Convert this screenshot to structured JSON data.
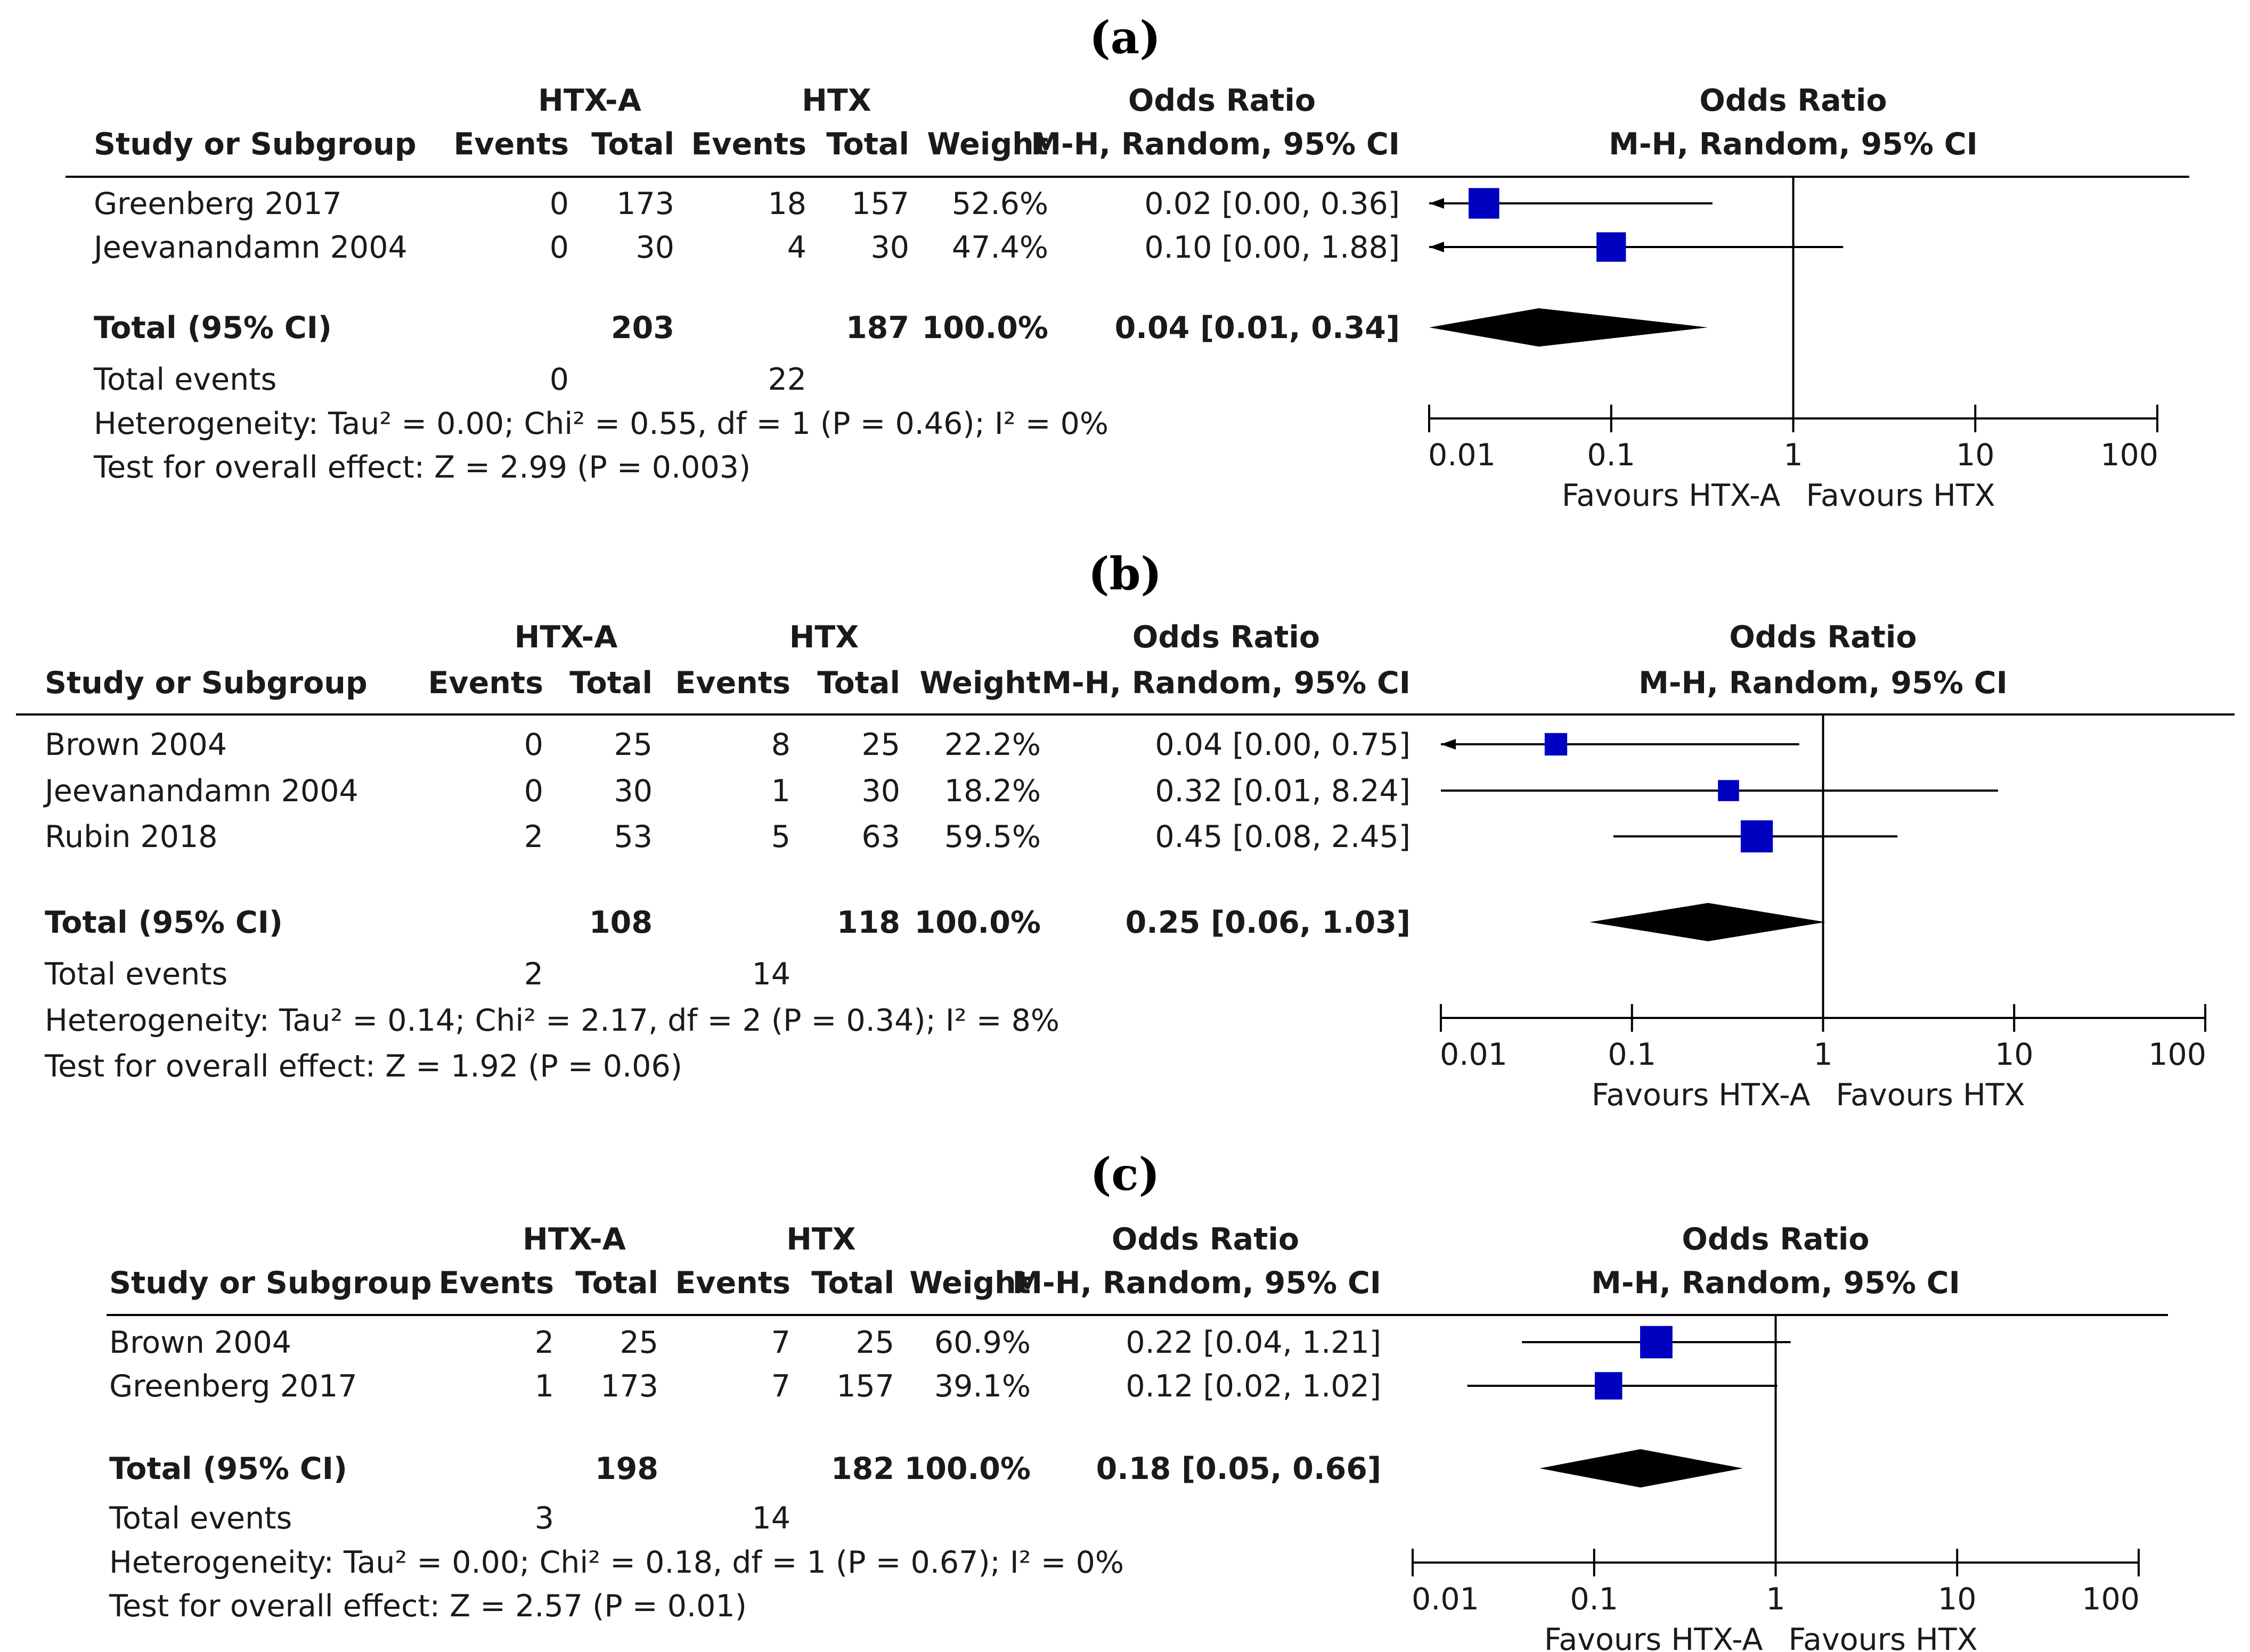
{
  "columns": {
    "study": "Study or Subgroup",
    "group1": "HTX-A",
    "group2": "HTX",
    "events": "Events",
    "total": "Total",
    "weight": "Weight",
    "or_title": "Odds Ratio",
    "or_method": "M-H, Random, 95% CI"
  },
  "axis": {
    "ticks": [
      "0.01",
      "0.1",
      "1",
      "10",
      "100"
    ],
    "favours_left": "Favours HTX-A",
    "favours_right": "Favours HTX"
  },
  "chart_data": [
    {
      "type": "forest",
      "label": "(a)",
      "studies": [
        {
          "name": "Greenberg 2017",
          "e1": "0",
          "n1": "173",
          "e2": "18",
          "n2": "157",
          "weight": "52.6%",
          "ci_text": "0.02 [0.00, 0.36]",
          "or": 0.02,
          "lo": 0.0001,
          "hi": 0.36,
          "w": 52.6,
          "lo_arrow": true
        },
        {
          "name": "Jeevanandamn 2004",
          "e1": "0",
          "n1": "30",
          "e2": "4",
          "n2": "30",
          "weight": "47.4%",
          "ci_text": "0.10 [0.00, 1.88]",
          "or": 0.1,
          "lo": 0.0001,
          "hi": 1.88,
          "w": 47.4,
          "lo_arrow": true
        }
      ],
      "total": {
        "label": "Total (95% CI)",
        "n1": "203",
        "n2": "187",
        "weight": "100.0%",
        "ci_text": "0.04 [0.01, 0.34]",
        "or": 0.04,
        "lo": 0.01,
        "hi": 0.34
      },
      "events": {
        "label": "Total events",
        "e1": "0",
        "e2": "22"
      },
      "heterogeneity": "Heterogeneity: Tau² = 0.00; Chi² = 0.55, df = 1 (P = 0.46); I² = 0%",
      "overall": "Test for overall effect: Z = 2.99 (P = 0.003)",
      "axis_range": [
        0.01,
        100
      ]
    },
    {
      "type": "forest",
      "label": "(b)",
      "studies": [
        {
          "name": "Brown 2004",
          "e1": "0",
          "n1": "25",
          "e2": "8",
          "n2": "25",
          "weight": "22.2%",
          "ci_text": "0.04 [0.00, 0.75]",
          "or": 0.04,
          "lo": 0.0001,
          "hi": 0.75,
          "w": 22.2,
          "lo_arrow": true
        },
        {
          "name": "Jeevanandamn 2004",
          "e1": "0",
          "n1": "30",
          "e2": "1",
          "n2": "30",
          "weight": "18.2%",
          "ci_text": "0.32 [0.01, 8.24]",
          "or": 0.32,
          "lo": 0.01,
          "hi": 8.24,
          "w": 18.2,
          "lo_arrow": false
        },
        {
          "name": "Rubin 2018",
          "e1": "2",
          "n1": "53",
          "e2": "5",
          "n2": "63",
          "weight": "59.5%",
          "ci_text": "0.45 [0.08, 2.45]",
          "or": 0.45,
          "lo": 0.08,
          "hi": 2.45,
          "w": 59.5,
          "lo_arrow": false
        }
      ],
      "total": {
        "label": "Total (95% CI)",
        "n1": "108",
        "n2": "118",
        "weight": "100.0%",
        "ci_text": "0.25 [0.06, 1.03]",
        "or": 0.25,
        "lo": 0.06,
        "hi": 1.03
      },
      "events": {
        "label": "Total events",
        "e1": "2",
        "e2": "14"
      },
      "heterogeneity": "Heterogeneity: Tau² = 0.14; Chi² = 2.17, df = 2 (P = 0.34); I² = 8%",
      "overall": "Test for overall effect: Z = 1.92 (P = 0.06)",
      "axis_range": [
        0.01,
        100
      ]
    },
    {
      "type": "forest",
      "label": "(c)",
      "studies": [
        {
          "name": "Brown 2004",
          "e1": "2",
          "n1": "25",
          "e2": "7",
          "n2": "25",
          "weight": "60.9%",
          "ci_text": "0.22 [0.04, 1.21]",
          "or": 0.22,
          "lo": 0.04,
          "hi": 1.21,
          "w": 60.9,
          "lo_arrow": false
        },
        {
          "name": "Greenberg 2017",
          "e1": "1",
          "n1": "173",
          "e2": "7",
          "n2": "157",
          "weight": "39.1%",
          "ci_text": "0.12 [0.02, 1.02]",
          "or": 0.12,
          "lo": 0.02,
          "hi": 1.02,
          "w": 39.1,
          "lo_arrow": false
        }
      ],
      "total": {
        "label": "Total (95% CI)",
        "n1": "198",
        "n2": "182",
        "weight": "100.0%",
        "ci_text": "0.18 [0.05, 0.66]",
        "or": 0.18,
        "lo": 0.05,
        "hi": 0.66
      },
      "events": {
        "label": "Total events",
        "e1": "3",
        "e2": "14"
      },
      "heterogeneity": "Heterogeneity: Tau² = 0.00; Chi² = 0.18, df = 1 (P = 0.67); I² = 0%",
      "overall": "Test for overall effect: Z = 2.57 (P = 0.01)",
      "axis_range": [
        0.01,
        100
      ]
    }
  ],
  "colors": {
    "marker": "#0000c0",
    "diamond": "#000000",
    "text": "#1a1a1a"
  }
}
